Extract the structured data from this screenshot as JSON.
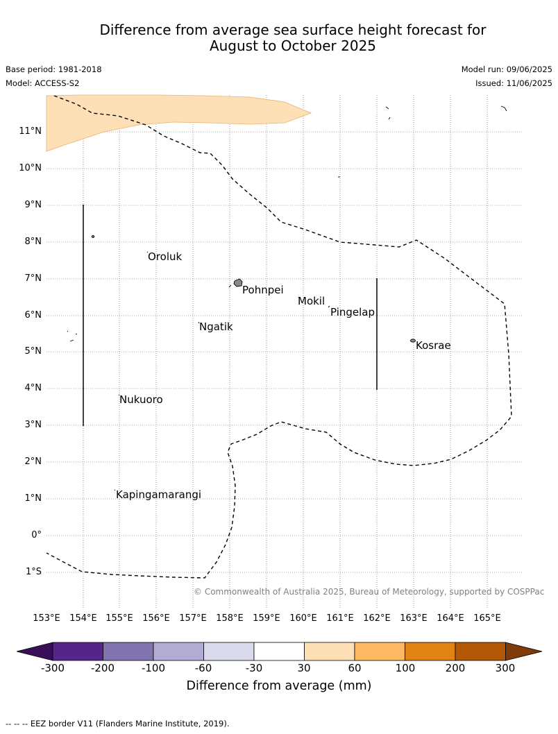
{
  "title_line1": "Difference from average sea surface height forecast for",
  "title_line2": "August to October 2025",
  "base_period": "Base period: 1981-2018",
  "model": "Model: ACCESS-S2",
  "model_run": "Model run: 09/06/2025",
  "issued": "Issued: 11/06/2025",
  "lat_labels": [
    "11°N",
    "10°N",
    "9°N",
    "8°N",
    "7°N",
    "6°N",
    "5°N",
    "4°N",
    "3°N",
    "2°N",
    "1°N",
    "0°",
    "1°S"
  ],
  "lon_labels": [
    "153°E",
    "154°E",
    "155°E",
    "156°E",
    "157°E",
    "158°E",
    "159°E",
    "160°E",
    "161°E",
    "162°E",
    "163°E",
    "164°E",
    "165°E"
  ],
  "places": {
    "oroluk": "Oroluk",
    "pohnpei": "Pohnpei",
    "mokil": "Mokil",
    "pingelap": "Pingelap",
    "ngatik": "Ngatik",
    "kosrae": "Kosrae",
    "nukuoro": "Nukuoro",
    "kapingamarangi": "Kapingamarangi"
  },
  "copyright": "© Commonwealth of Australia 2025, Bureau of Meteorology, supported by COSPPac",
  "colorbar": {
    "title": "Difference from average (mm)",
    "tick_labels": [
      "-300",
      "-200",
      "-100",
      "-60",
      "-30",
      "30",
      "60",
      "100",
      "200",
      "300"
    ],
    "colors": [
      "#3b0f57",
      "#55268a",
      "#8173ad",
      "#b2abd2",
      "#d8daeb",
      "#ffffff",
      "#fee0b6",
      "#fdb863",
      "#e08214",
      "#b35806",
      "#7f3b08"
    ]
  },
  "anomaly_region_color": "#fee0b6",
  "footnote": "--  --  -- EEZ border V11 (Flanders Marine Institute, 2019)."
}
